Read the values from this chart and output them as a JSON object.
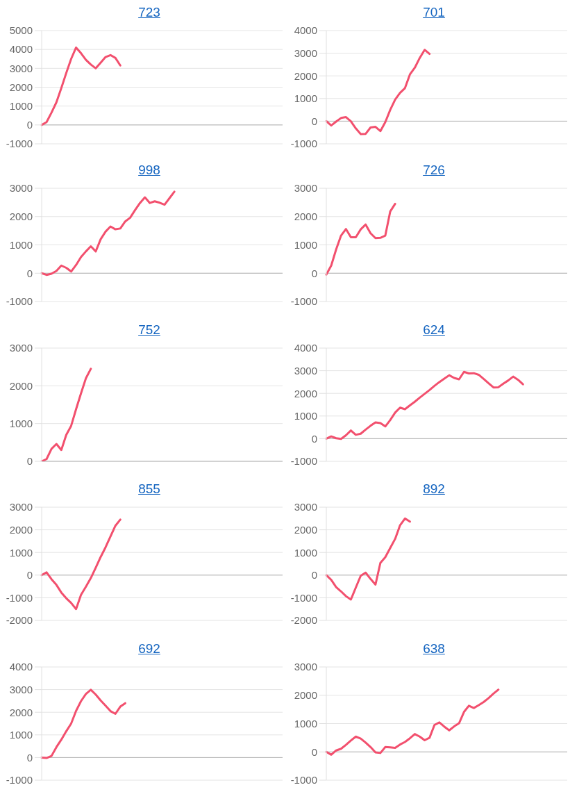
{
  "chart_data": [
    {
      "type": "line",
      "title": "723",
      "categories": [
        null,
        null,
        null,
        null,
        null,
        null,
        null,
        null,
        null,
        null,
        null,
        null,
        null,
        null,
        null,
        null,
        null,
        null,
        null,
        null,
        null,
        null,
        null,
        null,
        null,
        null,
        null,
        null,
        null,
        null,
        null,
        null,
        null,
        null,
        null,
        null,
        null,
        null,
        null,
        null,
        null,
        null,
        null,
        null,
        null,
        null,
        null,
        null,
        null,
        null
      ],
      "values": [
        0,
        150,
        650,
        1200,
        1950,
        2750,
        3500,
        4100,
        3800,
        3450,
        3200,
        3000,
        3300,
        3600,
        3700,
        3550,
        3150,
        null,
        null,
        null,
        null,
        null,
        null,
        null,
        null,
        null,
        null,
        null,
        null,
        null,
        null,
        null,
        null,
        null,
        null,
        null,
        null,
        null,
        null,
        null,
        null,
        null,
        null,
        null,
        null,
        null,
        null,
        null,
        null,
        null
      ],
      "color": "#f2506e",
      "ylim": [
        -1000,
        5000
      ],
      "yticks": [
        -1000,
        0,
        1000,
        2000,
        3000,
        4000,
        5000
      ],
      "grid": "y",
      "tick_labels": "y",
      "marker": "none",
      "ref_lines": [
        {
          "axis": "y",
          "value": 0,
          "color": "#b4b4b4"
        }
      ]
    },
    {
      "type": "line",
      "title": "701",
      "categories": [
        null,
        null,
        null,
        null,
        null,
        null,
        null,
        null,
        null,
        null,
        null,
        null,
        null,
        null,
        null,
        null,
        null,
        null,
        null,
        null,
        null,
        null,
        null,
        null,
        null,
        null,
        null,
        null,
        null,
        null,
        null,
        null,
        null,
        null,
        null,
        null,
        null,
        null,
        null,
        null,
        null,
        null,
        null,
        null,
        null,
        null,
        null,
        null,
        null,
        null
      ],
      "values": [
        0,
        -190,
        -20,
        140,
        180,
        -10,
        -320,
        -570,
        -560,
        -280,
        -250,
        -440,
        -40,
        500,
        950,
        1250,
        1460,
        2060,
        2360,
        2790,
        3150,
        2970,
        null,
        null,
        null,
        null,
        null,
        null,
        null,
        null,
        null,
        null,
        null,
        null,
        null,
        null,
        null,
        null,
        null,
        null,
        null,
        null,
        null,
        null,
        null,
        null,
        null,
        null,
        null,
        null
      ],
      "color": "#f2506e",
      "ylim": [
        -1000,
        4000
      ],
      "yticks": [
        -1000,
        0,
        1000,
        2000,
        3000,
        4000
      ],
      "grid": "y",
      "tick_labels": "y",
      "marker": "none",
      "ref_lines": [
        {
          "axis": "y",
          "value": 0,
          "color": "#b4b4b4"
        }
      ]
    },
    {
      "type": "line",
      "title": "998",
      "categories": [
        null,
        null,
        null,
        null,
        null,
        null,
        null,
        null,
        null,
        null,
        null,
        null,
        null,
        null,
        null,
        null,
        null,
        null,
        null,
        null,
        null,
        null,
        null,
        null,
        null,
        null,
        null,
        null,
        null,
        null,
        null,
        null,
        null,
        null,
        null,
        null,
        null,
        null,
        null,
        null,
        null,
        null,
        null,
        null,
        null,
        null,
        null,
        null,
        null,
        null
      ],
      "values": [
        0,
        -60,
        -20,
        80,
        270,
        190,
        60,
        290,
        570,
        770,
        950,
        770,
        1200,
        1470,
        1650,
        1550,
        1580,
        1830,
        1960,
        2230,
        2480,
        2680,
        2480,
        2540,
        2490,
        2420,
        2650,
        2880,
        null,
        null,
        null,
        null,
        null,
        null,
        null,
        null,
        null,
        null,
        null,
        null,
        null,
        null,
        null,
        null,
        null,
        null,
        null,
        null,
        null,
        null
      ],
      "color": "#f2506e",
      "ylim": [
        -1000,
        3000
      ],
      "yticks": [
        -1000,
        0,
        1000,
        2000,
        3000
      ],
      "grid": "y",
      "tick_labels": "y",
      "marker": "none",
      "ref_lines": [
        {
          "axis": "y",
          "value": 0,
          "color": "#b4b4b4"
        }
      ]
    },
    {
      "type": "line",
      "title": "726",
      "categories": [
        null,
        null,
        null,
        null,
        null,
        null,
        null,
        null,
        null,
        null,
        null,
        null,
        null,
        null,
        null,
        null,
        null,
        null,
        null,
        null,
        null,
        null,
        null,
        null,
        null,
        null,
        null,
        null,
        null,
        null,
        null,
        null,
        null,
        null,
        null,
        null,
        null,
        null,
        null,
        null,
        null,
        null,
        null,
        null,
        null,
        null,
        null,
        null,
        null,
        null
      ],
      "values": [
        -50,
        270,
        840,
        1330,
        1560,
        1270,
        1270,
        1550,
        1720,
        1410,
        1240,
        1250,
        1330,
        2180,
        2450,
        null,
        null,
        null,
        null,
        null,
        null,
        null,
        null,
        null,
        null,
        null,
        null,
        null,
        null,
        null,
        null,
        null,
        null,
        null,
        null,
        null,
        null,
        null,
        null,
        null,
        null,
        null,
        null,
        null,
        null,
        null,
        null,
        null,
        null,
        null
      ],
      "color": "#f2506e",
      "ylim": [
        -1000,
        3000
      ],
      "yticks": [
        -1000,
        0,
        1000,
        2000,
        3000
      ],
      "grid": "y",
      "tick_labels": "y",
      "marker": "none",
      "ref_lines": [
        {
          "axis": "y",
          "value": 0,
          "color": "#b4b4b4"
        }
      ]
    },
    {
      "type": "line",
      "title": "752",
      "categories": [
        null,
        null,
        null,
        null,
        null,
        null,
        null,
        null,
        null,
        null,
        null,
        null,
        null,
        null,
        null,
        null,
        null,
        null,
        null,
        null,
        null,
        null,
        null,
        null,
        null,
        null,
        null,
        null,
        null,
        null,
        null,
        null,
        null,
        null,
        null,
        null,
        null,
        null,
        null,
        null,
        null,
        null,
        null,
        null,
        null,
        null,
        null,
        null,
        null,
        null
      ],
      "values": [
        0,
        60,
        330,
        460,
        300,
        700,
        940,
        1380,
        1800,
        2200,
        2450,
        null,
        null,
        null,
        null,
        null,
        null,
        null,
        null,
        null,
        null,
        null,
        null,
        null,
        null,
        null,
        null,
        null,
        null,
        null,
        null,
        null,
        null,
        null,
        null,
        null,
        null,
        null,
        null,
        null,
        null,
        null,
        null,
        null,
        null,
        null,
        null,
        null,
        null,
        null
      ],
      "color": "#f2506e",
      "ylim": [
        0,
        3000
      ],
      "yticks": [
        0,
        1000,
        2000,
        3000
      ],
      "grid": "y",
      "tick_labels": "y",
      "marker": "none",
      "ref_lines": [
        {
          "axis": "y",
          "value": 0,
          "color": "#b4b4b4"
        }
      ]
    },
    {
      "type": "line",
      "title": "624",
      "categories": [
        null,
        null,
        null,
        null,
        null,
        null,
        null,
        null,
        null,
        null,
        null,
        null,
        null,
        null,
        null,
        null,
        null,
        null,
        null,
        null,
        null,
        null,
        null,
        null,
        null,
        null,
        null,
        null,
        null,
        null,
        null,
        null,
        null,
        null,
        null,
        null,
        null,
        null,
        null,
        null,
        null,
        null,
        null,
        null,
        null,
        null,
        null,
        null,
        null,
        null
      ],
      "values": [
        0,
        100,
        20,
        -10,
        150,
        360,
        170,
        220,
        400,
        570,
        720,
        690,
        540,
        820,
        1150,
        1370,
        1300,
        1470,
        1630,
        1810,
        1980,
        2150,
        2330,
        2500,
        2650,
        2800,
        2680,
        2620,
        2950,
        2880,
        2890,
        2820,
        2640,
        2450,
        2260,
        2270,
        2430,
        2570,
        2740,
        2600,
        2400,
        null,
        null,
        null,
        null,
        null,
        null,
        null,
        null,
        null
      ],
      "color": "#f2506e",
      "ylim": [
        -1000,
        4000
      ],
      "yticks": [
        -1000,
        0,
        1000,
        2000,
        3000,
        4000
      ],
      "grid": "y",
      "tick_labels": "y",
      "marker": "none",
      "ref_lines": [
        {
          "axis": "y",
          "value": 0,
          "color": "#b4b4b4"
        }
      ]
    },
    {
      "type": "line",
      "title": "855",
      "categories": [
        null,
        null,
        null,
        null,
        null,
        null,
        null,
        null,
        null,
        null,
        null,
        null,
        null,
        null,
        null,
        null,
        null,
        null,
        null,
        null,
        null,
        null,
        null,
        null,
        null,
        null,
        null,
        null,
        null,
        null,
        null,
        null,
        null,
        null,
        null,
        null,
        null,
        null,
        null,
        null,
        null,
        null,
        null,
        null,
        null,
        null,
        null,
        null,
        null,
        null
      ],
      "values": [
        0,
        120,
        -180,
        -430,
        -770,
        -1020,
        -1230,
        -1500,
        -870,
        -510,
        -130,
        330,
        800,
        1230,
        1710,
        2180,
        2450,
        null,
        null,
        null,
        null,
        null,
        null,
        null,
        null,
        null,
        null,
        null,
        null,
        null,
        null,
        null,
        null,
        null,
        null,
        null,
        null,
        null,
        null,
        null,
        null,
        null,
        null,
        null,
        null,
        null,
        null,
        null,
        null,
        null
      ],
      "color": "#f2506e",
      "ylim": [
        -2000,
        3000
      ],
      "yticks": [
        -2000,
        -1000,
        0,
        1000,
        2000,
        3000
      ],
      "grid": "y",
      "tick_labels": "y",
      "marker": "none",
      "ref_lines": [
        {
          "axis": "y",
          "value": 0,
          "color": "#b4b4b4"
        }
      ]
    },
    {
      "type": "line",
      "title": "892",
      "categories": [
        null,
        null,
        null,
        null,
        null,
        null,
        null,
        null,
        null,
        null,
        null,
        null,
        null,
        null,
        null,
        null,
        null,
        null,
        null,
        null,
        null,
        null,
        null,
        null,
        null,
        null,
        null,
        null,
        null,
        null,
        null,
        null,
        null,
        null,
        null,
        null,
        null,
        null,
        null,
        null,
        null,
        null,
        null,
        null,
        null,
        null,
        null,
        null,
        null,
        null
      ],
      "values": [
        0,
        -210,
        -530,
        -720,
        -930,
        -1080,
        -550,
        -30,
        110,
        -170,
        -420,
        540,
        790,
        1200,
        1600,
        2200,
        2500,
        2360,
        null,
        null,
        null,
        null,
        null,
        null,
        null,
        null,
        null,
        null,
        null,
        null,
        null,
        null,
        null,
        null,
        null,
        null,
        null,
        null,
        null,
        null,
        null,
        null,
        null,
        null,
        null,
        null,
        null,
        null,
        null,
        null
      ],
      "color": "#f2506e",
      "ylim": [
        -2000,
        3000
      ],
      "yticks": [
        -2000,
        -1000,
        0,
        1000,
        2000,
        3000
      ],
      "grid": "y",
      "tick_labels": "y",
      "marker": "none",
      "ref_lines": [
        {
          "axis": "y",
          "value": 0,
          "color": "#b4b4b4"
        }
      ]
    },
    {
      "type": "line",
      "title": "692",
      "categories": [
        null,
        null,
        null,
        null,
        null,
        null,
        null,
        null,
        null,
        null,
        null,
        null,
        null,
        null,
        null,
        null,
        null,
        null,
        null,
        null,
        null,
        null,
        null,
        null,
        null,
        null,
        null,
        null,
        null,
        null,
        null,
        null,
        null,
        null,
        null,
        null,
        null,
        null,
        null,
        null,
        null,
        null,
        null,
        null,
        null,
        null,
        null,
        null,
        null,
        null
      ],
      "values": [
        0,
        -20,
        70,
        460,
        790,
        1160,
        1500,
        2060,
        2490,
        2810,
        2990,
        2780,
        2520,
        2290,
        2050,
        1930,
        2250,
        2400,
        null,
        null,
        null,
        null,
        null,
        null,
        null,
        null,
        null,
        null,
        null,
        null,
        null,
        null,
        null,
        null,
        null,
        null,
        null,
        null,
        null,
        null,
        null,
        null,
        null,
        null,
        null,
        null,
        null,
        null,
        null,
        null
      ],
      "color": "#f2506e",
      "ylim": [
        -1000,
        4000
      ],
      "yticks": [
        -1000,
        0,
        1000,
        2000,
        3000,
        4000
      ],
      "grid": "y",
      "tick_labels": "y",
      "marker": "none",
      "ref_lines": [
        {
          "axis": "y",
          "value": 0,
          "color": "#b4b4b4"
        }
      ]
    },
    {
      "type": "line",
      "title": "638",
      "categories": [
        null,
        null,
        null,
        null,
        null,
        null,
        null,
        null,
        null,
        null,
        null,
        null,
        null,
        null,
        null,
        null,
        null,
        null,
        null,
        null,
        null,
        null,
        null,
        null,
        null,
        null,
        null,
        null,
        null,
        null,
        null,
        null,
        null,
        null,
        null,
        null,
        null,
        null,
        null,
        null,
        null,
        null,
        null,
        null,
        null,
        null,
        null,
        null,
        null,
        null
      ],
      "values": [
        0,
        -100,
        50,
        110,
        250,
        400,
        540,
        470,
        330,
        170,
        -20,
        -40,
        170,
        160,
        140,
        260,
        350,
        480,
        630,
        540,
        410,
        500,
        950,
        1040,
        890,
        760,
        900,
        1010,
        1410,
        1630,
        1550,
        1650,
        1760,
        1900,
        2060,
        2200,
        null,
        null,
        null,
        null,
        null,
        null,
        null,
        null,
        null,
        null,
        null,
        null,
        null,
        null
      ],
      "color": "#f2506e",
      "ylim": [
        -1000,
        3000
      ],
      "yticks": [
        -1000,
        0,
        1000,
        2000,
        3000
      ],
      "grid": "y",
      "tick_labels": "y",
      "marker": "none",
      "ref_lines": [
        {
          "axis": "y",
          "value": 0,
          "color": "#b4b4b4"
        }
      ]
    }
  ]
}
